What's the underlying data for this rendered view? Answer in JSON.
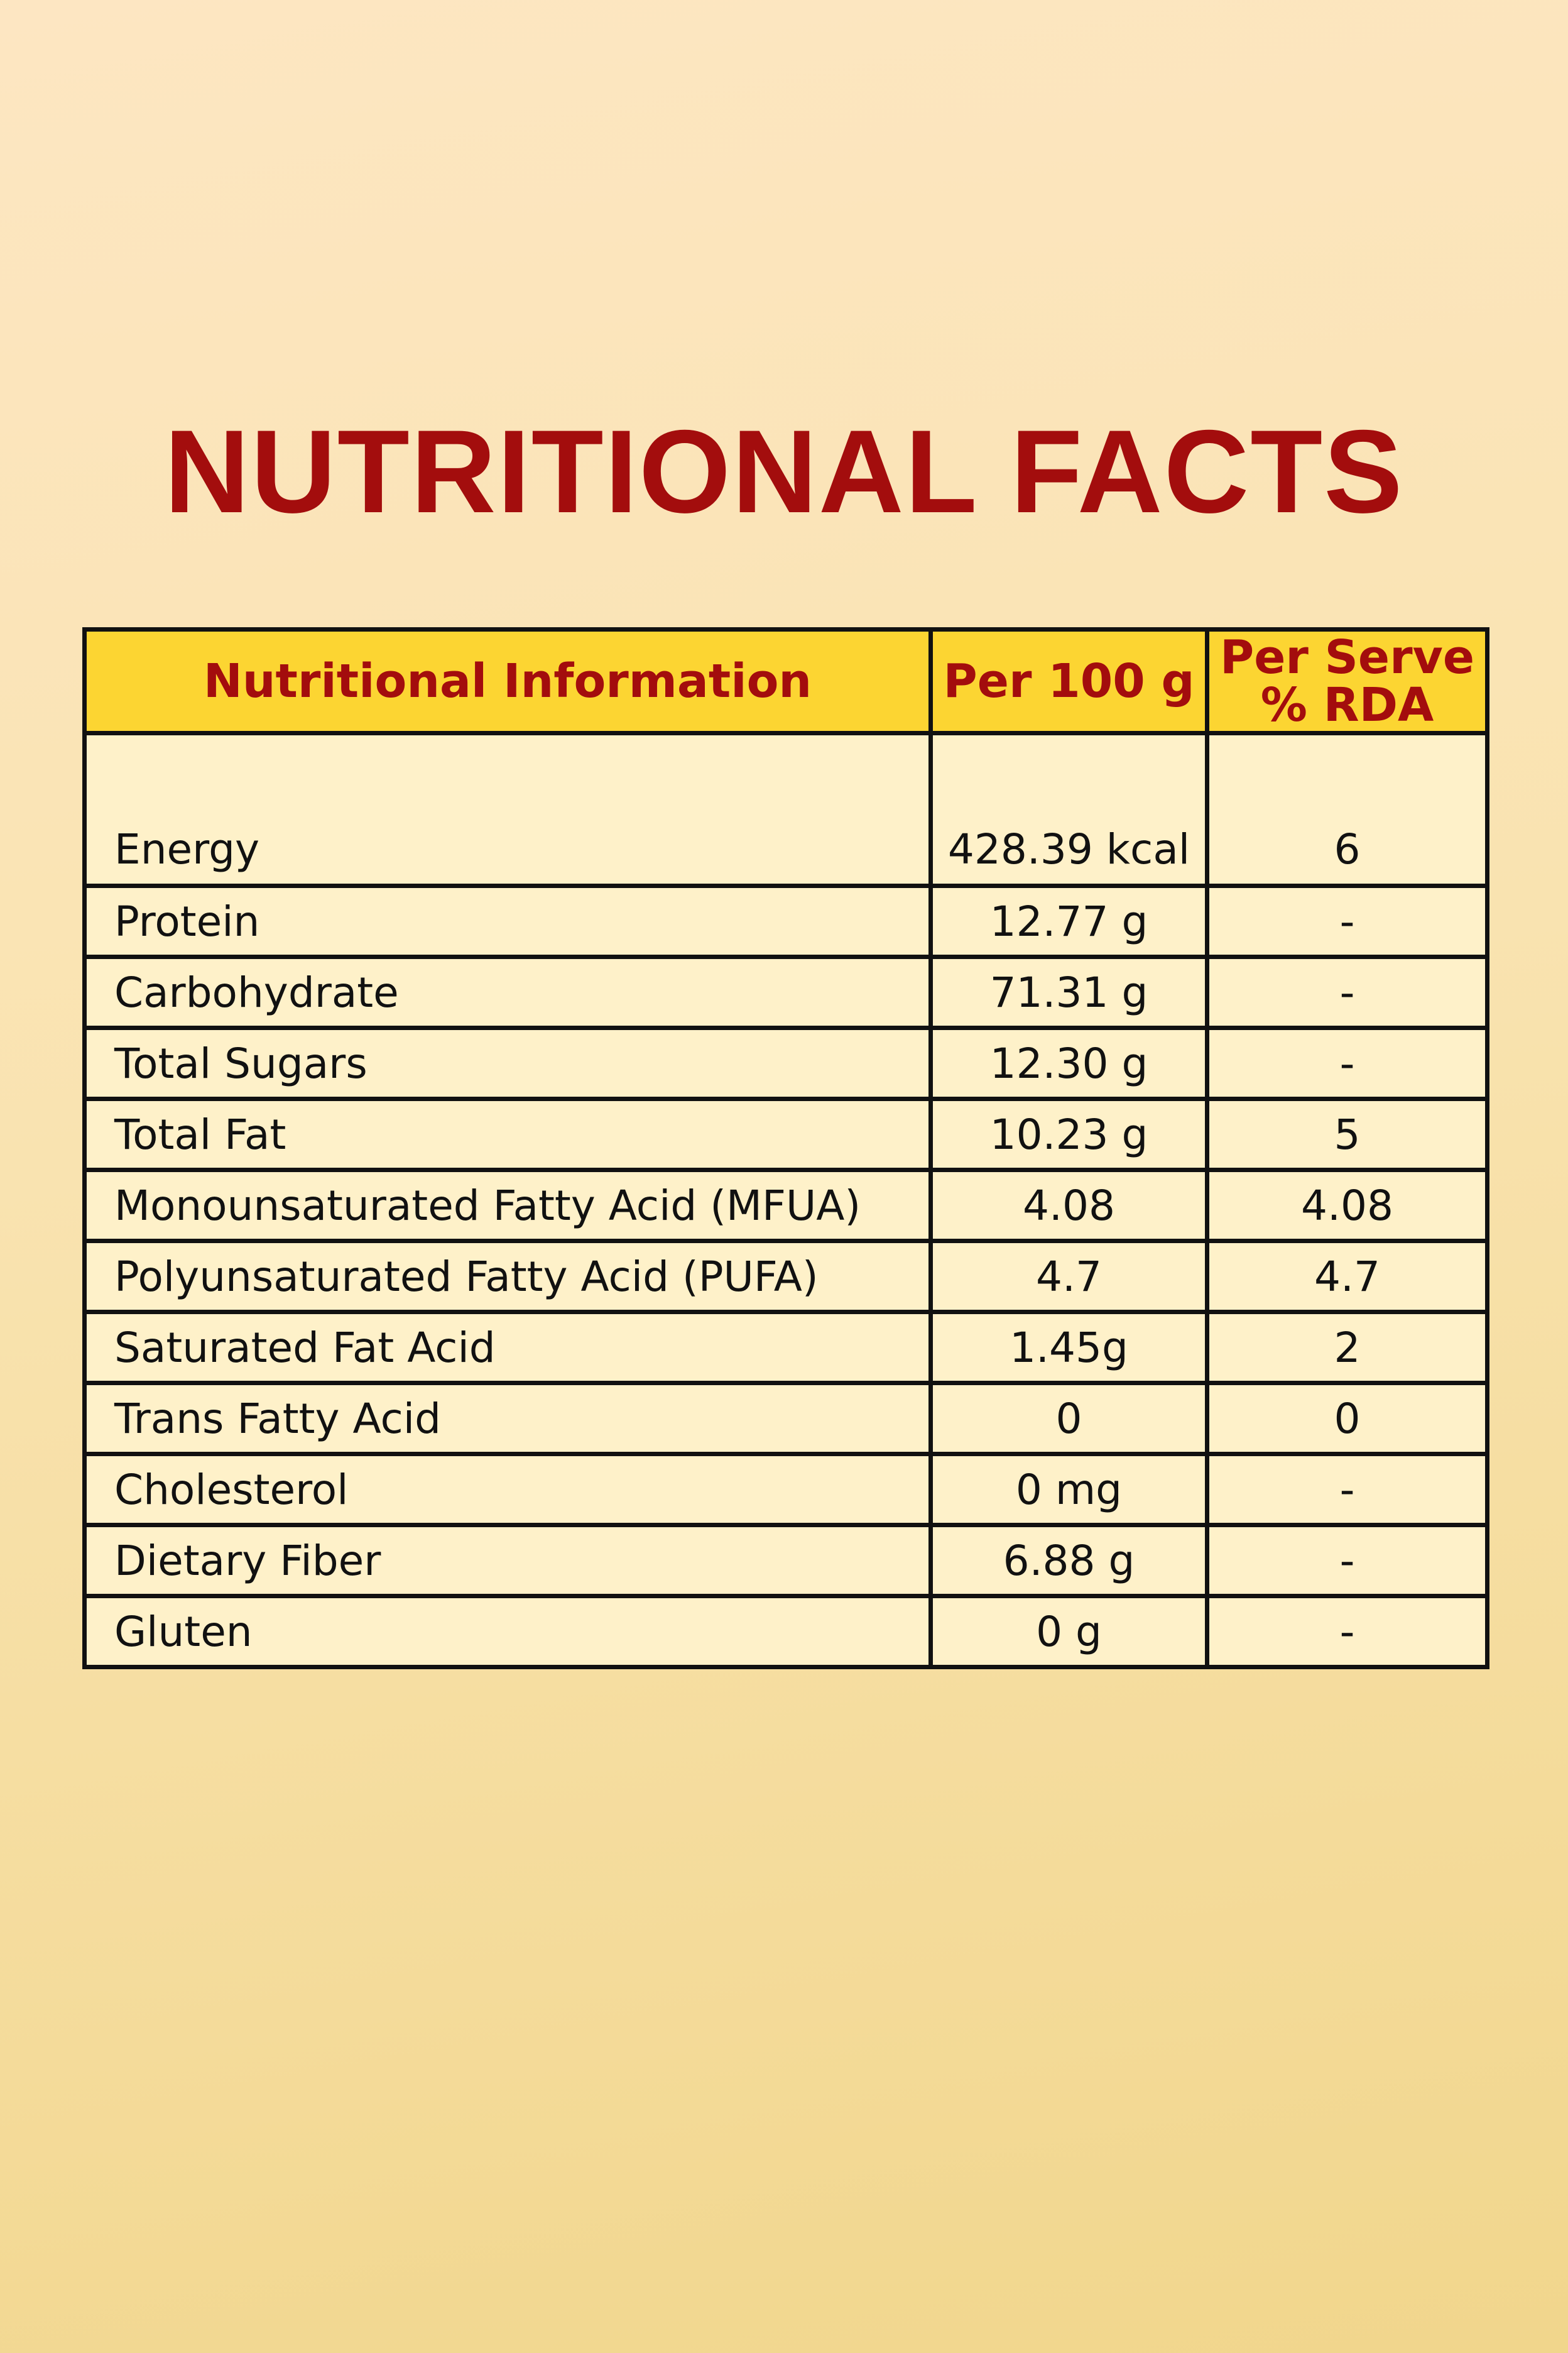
{
  "header": {
    "title": "NUTRITIONAL FACTS"
  },
  "table": {
    "columns": [
      "Nutritional Information",
      "Per 100 g",
      "Per Serve % RDA"
    ],
    "rows": [
      [
        "Energy",
        "428.39 kcal",
        "6"
      ],
      [
        "Protein",
        "12.77 g",
        "-"
      ],
      [
        "Carbohydrate",
        "71.31 g",
        "-"
      ],
      [
        "Total Sugars",
        "12.30 g",
        "-"
      ],
      [
        "Total Fat",
        "10.23 g",
        "5"
      ],
      [
        "Monounsaturated Fatty Acid (MFUA)",
        "4.08",
        "4.08"
      ],
      [
        "Polyunsaturated Fatty Acid (PUFA)",
        "4.7",
        "4.7"
      ],
      [
        "Saturated Fat Acid",
        "1.45g",
        "2"
      ],
      [
        "Trans Fatty Acid",
        "0",
        "0"
      ],
      [
        "Cholesterol",
        "0 mg",
        "-"
      ],
      [
        "Dietary Fiber",
        "6.88 g",
        "-"
      ],
      [
        "Gluten",
        "0 g",
        "-"
      ]
    ]
  }
}
